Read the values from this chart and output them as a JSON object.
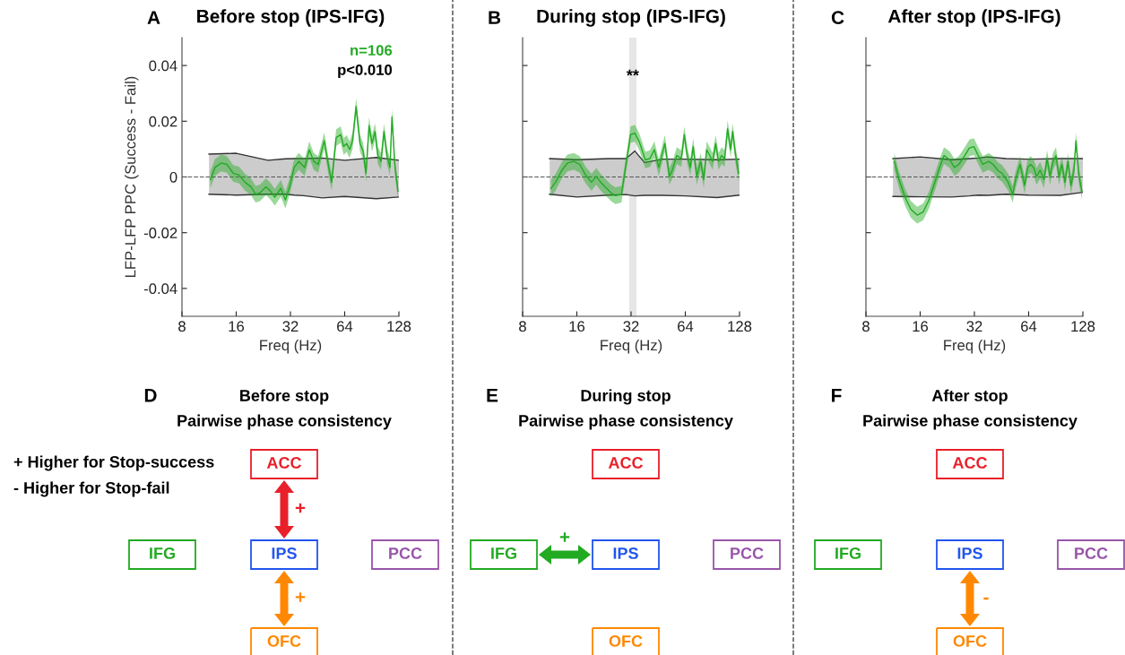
{
  "chart_data": [
    {
      "type": "line",
      "title": "Before stop (IPS-IFG)",
      "xlabel": "Freq (Hz)",
      "ylabel": "LFP-LFP PPC (Success - Fail)",
      "log": "x",
      "xlim": [
        8,
        128
      ],
      "xticks": [
        8,
        16,
        32,
        64,
        128
      ],
      "ylim": [
        -0.05,
        0.05
      ],
      "yticks": [
        -0.04,
        -0.02,
        0,
        0.02,
        0.04
      ],
      "grid": false,
      "ref_lines": [
        {
          "axis": "y",
          "value": 0,
          "color": "#555555",
          "line_style": "dashed"
        }
      ],
      "annotations": [
        "A",
        "p<0.010"
      ],
      "series": [
        {
          "type": "area",
          "color": "#cccccc",
          "x": [
            11.3,
            16,
            24,
            30,
            33.6,
            38,
            48,
            64,
            96,
            128
          ],
          "values": [
            0.0082,
            0.0085,
            0.006,
            0.0065,
            0.0066,
            0.0066,
            0.0068,
            0.006,
            0.007,
            0.006
          ]
        },
        {
          "type": "area",
          "color": "#cccccc",
          "x": [
            11.3,
            16,
            24,
            30,
            33.6,
            38,
            48,
            64,
            96,
            128
          ],
          "values": [
            -0.0062,
            -0.0065,
            -0.0062,
            -0.0062,
            -0.0065,
            -0.0067,
            -0.0075,
            -0.007,
            -0.0078,
            -0.0072
          ]
        },
        {
          "type": "line",
          "name": "n=106",
          "color": "#22aa22",
          "x": [
            11.5,
            12.2,
            13.2,
            14.2,
            15.4,
            16.6,
            17.9,
            19.3,
            20.5,
            21.7,
            23.4,
            24.8,
            26.2,
            28.3,
            30.0,
            31.8,
            33.6,
            35.6,
            38.4,
            40.7,
            43.1,
            45.6,
            49.3,
            52.2,
            54.2,
            57.4,
            60.8,
            63.2,
            65.6,
            68.2,
            70.8,
            74.1,
            77.9,
            81,
            84.1,
            87.4,
            90.8,
            94.3,
            97.9,
            101.8,
            105.8,
            109.9,
            114.2,
            117.2,
            121.8,
            126.5
          ],
          "values": [
            -0.0009,
            0.0034,
            0.005,
            0.0045,
            0.0013,
            0.0007,
            -0.0019,
            -0.0035,
            -0.0062,
            -0.0057,
            -0.0035,
            -0.0051,
            -0.0073,
            -0.0041,
            -0.0083,
            -0.003,
            0.0034,
            0.0056,
            0.0034,
            0.0098,
            0.0056,
            0.0045,
            0.013,
            0.0034,
            -0.0019,
            0.0141,
            0.0152,
            0.0109,
            0.012,
            0.0098,
            0.013,
            0.0253,
            0.012,
            0.0093,
            0.0013,
            0.0184,
            0.012,
            0.0163,
            0.0077,
            0.0056,
            0.0163,
            0.0077,
            0.0034,
            0.0216,
            0.0034,
            -0.0051
          ],
          "lower": [
            -0.0039,
            0.0004,
            0.002,
            0.0015,
            -0.0017,
            -0.0023,
            -0.0049,
            -0.0065,
            -0.0092,
            -0.0087,
            -0.0065,
            -0.0081,
            -0.0103,
            -0.0071,
            -0.0113,
            -0.006,
            0.0004,
            0.0026,
            0.0004,
            0.0068,
            0.0026,
            0.0015,
            0.01,
            0.0004,
            -0.0049,
            0.0111,
            0.0122,
            0.0079,
            0.009,
            0.0068,
            0.01,
            0.0223,
            0.009,
            0.0063,
            -0.0017,
            0.0154,
            0.009,
            0.0133,
            0.0047,
            0.0026,
            0.0133,
            0.0047,
            0.0004,
            0.0186,
            0.0004,
            -0.0081
          ],
          "upper": [
            0.0021,
            0.0064,
            0.008,
            0.0075,
            0.0043,
            0.0037,
            0.0011,
            -0.0005,
            -0.0032,
            -0.0027,
            -0.0005,
            -0.0021,
            -0.0043,
            -0.0011,
            -0.0053,
            0,
            0.0064,
            0.0086,
            0.0064,
            0.0128,
            0.0086,
            0.0075,
            0.016,
            0.0064,
            0.0011,
            0.0171,
            0.0182,
            0.0139,
            0.015,
            0.0128,
            0.016,
            0.0283,
            0.015,
            0.0123,
            0.0043,
            0.0214,
            0.015,
            0.0193,
            0.0107,
            0.0086,
            0.0193,
            0.0107,
            0.0064,
            0.0246,
            0.0064,
            -0.0021
          ]
        }
      ]
    },
    {
      "type": "line",
      "title": "During stop (IPS-IFG)",
      "xlabel": "Freq (Hz)",
      "log": "x",
      "xlim": [
        8,
        128
      ],
      "xticks": [
        8,
        16,
        32,
        64,
        128
      ],
      "ylim": [
        -0.05,
        0.05
      ],
      "yticks": [
        -0.04,
        -0.02,
        0,
        0.02,
        0.04
      ],
      "tick_labels": "x",
      "grid": false,
      "ref_lines": [
        {
          "axis": "y",
          "value": 0,
          "color": "#555555",
          "line_style": "dashed"
        }
      ],
      "bands": [
        {
          "axis": "x",
          "from": 31.2,
          "to": 34.3,
          "color": "#e6e6e6"
        }
      ],
      "annotations": [
        "B",
        {
          "text": "**",
          "x": 32.7,
          "y": 0.036
        }
      ],
      "series": [
        {
          "type": "area",
          "color": "#cccccc",
          "x": [
            11.3,
            16,
            24,
            30,
            33.6,
            38,
            48,
            64,
            96,
            128
          ],
          "values": [
            0.0066,
            0.0062,
            0.0066,
            0.0066,
            0.0093,
            0.0052,
            0.0064,
            0.0064,
            0.0062,
            0.0064
          ]
        },
        {
          "type": "area",
          "color": "#cccccc",
          "x": [
            11.3,
            16,
            24,
            30,
            33.6,
            38,
            48,
            64,
            96,
            128
          ],
          "values": [
            -0.0062,
            -0.0072,
            -0.0065,
            -0.0063,
            -0.0068,
            -0.0066,
            -0.0066,
            -0.0068,
            -0.0074,
            -0.0065
          ]
        },
        {
          "type": "line",
          "color": "#22aa22",
          "x": [
            11.5,
            12.2,
            13.2,
            14.2,
            15.4,
            16.6,
            17.9,
            19.3,
            20.5,
            21.7,
            23.4,
            24.8,
            26.2,
            28.3,
            30.0,
            31.8,
            33.6,
            35.6,
            38.4,
            40.7,
            43.1,
            45.6,
            49.3,
            52.2,
            54.2,
            57.4,
            60.8,
            63.2,
            65.6,
            68.2,
            70.8,
            74.1,
            77.9,
            81,
            84.1,
            87.4,
            90.8,
            94.3,
            97.9,
            101.8,
            105.8,
            109.9,
            114.2,
            117.2,
            121.8,
            126.5
          ],
          "values": [
            -0.0041,
            -0.0019,
            0.0024,
            0.005,
            0.0056,
            0.0045,
            0.0007,
            -0.0019,
            0.0002,
            -0.0019,
            -0.0041,
            -0.0057,
            -0.0067,
            -0.0062,
            0.0045,
            0.0152,
            0.0157,
            0.0125,
            0.0061,
            0.0066,
            0.0098,
            0.0034,
            0.012,
            0.0002,
            0.0024,
            0.0077,
            0.0066,
            0.0152,
            0.0077,
            0.0034,
            0.0109,
            0.0002,
            0.0056,
            -0.0009,
            0.0098,
            0.0077,
            0.0056,
            0.012,
            0.0056,
            0.0077,
            0.0066,
            0.0173,
            0.0098,
            0.0163,
            0.0077,
            0.0013
          ],
          "lower": [
            -0.0071,
            -0.0049,
            -0.0006,
            0.002,
            0.0026,
            0.0015,
            -0.0023,
            -0.0049,
            -0.0028,
            -0.0049,
            -0.0071,
            -0.0087,
            -0.0097,
            -0.0092,
            0.0015,
            0.0122,
            0.0127,
            0.0095,
            0.0031,
            0.0036,
            0.0068,
            0.0004,
            0.009,
            -0.0028,
            -0.0006,
            0.0047,
            0.0036,
            0.0122,
            0.0047,
            0.0004,
            0.0079,
            -0.0028,
            0.0026,
            -0.0039,
            0.0068,
            0.0047,
            0.0026,
            0.009,
            0.0026,
            0.0047,
            0.0036,
            0.0143,
            0.0068,
            0.0133,
            0.0047,
            -0.0017
          ],
          "upper": [
            -0.0011,
            0.0011,
            0.0054,
            0.008,
            0.0086,
            0.0075,
            0.0037,
            0.0011,
            0.0032,
            0.0011,
            -0.0011,
            -0.0027,
            -0.0037,
            -0.0032,
            0.0075,
            0.0182,
            0.0187,
            0.0155,
            0.0091,
            0.0096,
            0.0128,
            0.0064,
            0.015,
            0.0032,
            0.0054,
            0.0107,
            0.0096,
            0.0182,
            0.0107,
            0.0064,
            0.0139,
            0.0032,
            0.0086,
            0.0021,
            0.0128,
            0.0107,
            0.0086,
            0.015,
            0.0086,
            0.0107,
            0.0096,
            0.0203,
            0.0128,
            0.0193,
            0.0107,
            0.0043
          ]
        }
      ]
    },
    {
      "type": "line",
      "title": "After stop (IPS-IFG)",
      "xlabel": "Freq (Hz)",
      "log": "x",
      "xlim": [
        8,
        128
      ],
      "xticks": [
        8,
        16,
        32,
        64,
        128
      ],
      "ylim": [
        -0.05,
        0.05
      ],
      "yticks": [
        -0.04,
        -0.02,
        0,
        0.02,
        0.04
      ],
      "tick_labels": "x",
      "grid": false,
      "ref_lines": [
        {
          "axis": "y",
          "value": 0,
          "color": "#555555",
          "line_style": "dashed"
        }
      ],
      "annotations": [
        "C"
      ],
      "series": [
        {
          "type": "area",
          "color": "#cccccc",
          "x": [
            11.3,
            16,
            24,
            30,
            33.6,
            38,
            48,
            64,
            96,
            128
          ],
          "values": [
            0.0066,
            0.0072,
            0.0062,
            0.0066,
            0.0068,
            0.0072,
            0.0066,
            0.0064,
            0.0066,
            0.0066
          ]
        },
        {
          "type": "area",
          "color": "#cccccc",
          "x": [
            11.3,
            16,
            24,
            30,
            33.6,
            38,
            48,
            64,
            96,
            128
          ],
          "values": [
            -0.007,
            -0.0071,
            -0.0072,
            -0.0068,
            -0.0065,
            -0.0066,
            -0.0062,
            -0.0065,
            -0.0066,
            -0.0055
          ]
        },
        {
          "type": "line",
          "color": "#22aa22",
          "x": [
            11.5,
            12.2,
            13.2,
            14.2,
            15.4,
            16.6,
            17.9,
            19.3,
            20.5,
            21.7,
            23.4,
            24.8,
            26.2,
            28.3,
            30.0,
            31.8,
            33.6,
            35.6,
            38.4,
            40.7,
            43.1,
            45.6,
            49.3,
            52.2,
            54.2,
            57.4,
            60.8,
            63.2,
            65.6,
            68.2,
            70.8,
            74.1,
            77.9,
            81,
            84.1,
            87.4,
            90.8,
            94.3,
            97.9,
            101.8,
            105.8,
            109.9,
            114.2,
            117.2,
            121.8,
            126.5
          ],
          "values": [
            0.0056,
            -0.0009,
            -0.0073,
            -0.0116,
            -0.0137,
            -0.0126,
            -0.0083,
            -0.0019,
            0.0034,
            0.0077,
            0.0061,
            0.0034,
            0.0045,
            0.0077,
            0.0104,
            0.0109,
            0.0077,
            0.0045,
            0.0056,
            0.0045,
            0.0024,
            0.0013,
            -0.0019,
            -0.0062,
            -0.0009,
            0.0045,
            -0.003,
            0.0034,
            0.0045,
            0.0034,
            0.0002,
            0.0024,
            -0.0009,
            0.0066,
            0.0002,
            0.0056,
            0.0077,
            0.0002,
            0.0045,
            -0.0019,
            0.0056,
            -0.003,
            0.0024,
            0.013,
            0.0002,
            -0.0051
          ],
          "lower": [
            0.0026,
            -0.0039,
            -0.0103,
            -0.0146,
            -0.0167,
            -0.0156,
            -0.0113,
            -0.0049,
            0.0004,
            0.0047,
            0.0031,
            0.0004,
            0.0015,
            0.0047,
            0.0074,
            0.0079,
            0.0047,
            0.0015,
            0.0026,
            0.0015,
            -0.0006,
            -0.0017,
            -0.0049,
            -0.0092,
            -0.0039,
            0.0015,
            -0.006,
            0.0004,
            0.0015,
            0.0004,
            -0.0028,
            -0.0006,
            -0.0039,
            0.0036,
            -0.0028,
            0.0026,
            0.0047,
            -0.0028,
            0.0015,
            -0.0049,
            0.0026,
            -0.006,
            -0.0006,
            0.01,
            -0.0028,
            -0.0081
          ],
          "upper": [
            0.0086,
            0.0021,
            -0.0043,
            -0.0086,
            -0.0107,
            -0.0096,
            -0.0053,
            0.0011,
            0.0064,
            0.0107,
            0.0091,
            0.0064,
            0.0075,
            0.0107,
            0.0134,
            0.0139,
            0.0107,
            0.0075,
            0.0086,
            0.0075,
            0.0054,
            0.0043,
            0.0011,
            -0.0032,
            0.0021,
            0.0075,
            0,
            0.0064,
            0.0075,
            0.0064,
            0.0032,
            0.0054,
            0.0021,
            0.0096,
            0.0032,
            0.0086,
            0.0107,
            0.0032,
            0.0075,
            0.0011,
            0.0086,
            0,
            0.0054,
            0.016,
            0.0032,
            -0.0021
          ]
        }
      ]
    },
    {
      "type": "other",
      "title": "Before stop",
      "subtitle": "Pairwise phase consistency",
      "categories": [
        "ACC",
        "IFG",
        "IPS",
        "PCC",
        "OFC"
      ],
      "colors": [
        "#e8202a",
        "#22aa22",
        "#2255ee",
        "#9955aa",
        "#ff8800"
      ],
      "annotations": [
        "D",
        "+ Higher for Stop-success",
        "- Higher for Stop-fail",
        {
          "text": "+",
          "x": "ACC",
          "y": "IPS"
        },
        {
          "text": "+",
          "x": "OFC",
          "y": "IPS"
        }
      ]
    },
    {
      "type": "other",
      "title": "During stop",
      "subtitle": "Pairwise phase consistency",
      "categories": [
        "ACC",
        "IFG",
        "IPS",
        "PCC",
        "OFC"
      ],
      "colors": [
        "#e8202a",
        "#22aa22",
        "#2255ee",
        "#9955aa",
        "#ff8800"
      ],
      "annotations": [
        "E",
        {
          "text": "+",
          "x": "IFG",
          "y": "IPS"
        }
      ]
    },
    {
      "type": "other",
      "title": "After stop",
      "subtitle": "Pairwise phase consistency",
      "categories": [
        "ACC",
        "IFG",
        "IPS",
        "PCC",
        "OFC"
      ],
      "colors": [
        "#e8202a",
        "#22aa22",
        "#2255ee",
        "#9955aa",
        "#ff8800"
      ],
      "annotations": [
        "F",
        {
          "text": "-",
          "x": "OFC",
          "y": "IPS"
        }
      ]
    }
  ]
}
